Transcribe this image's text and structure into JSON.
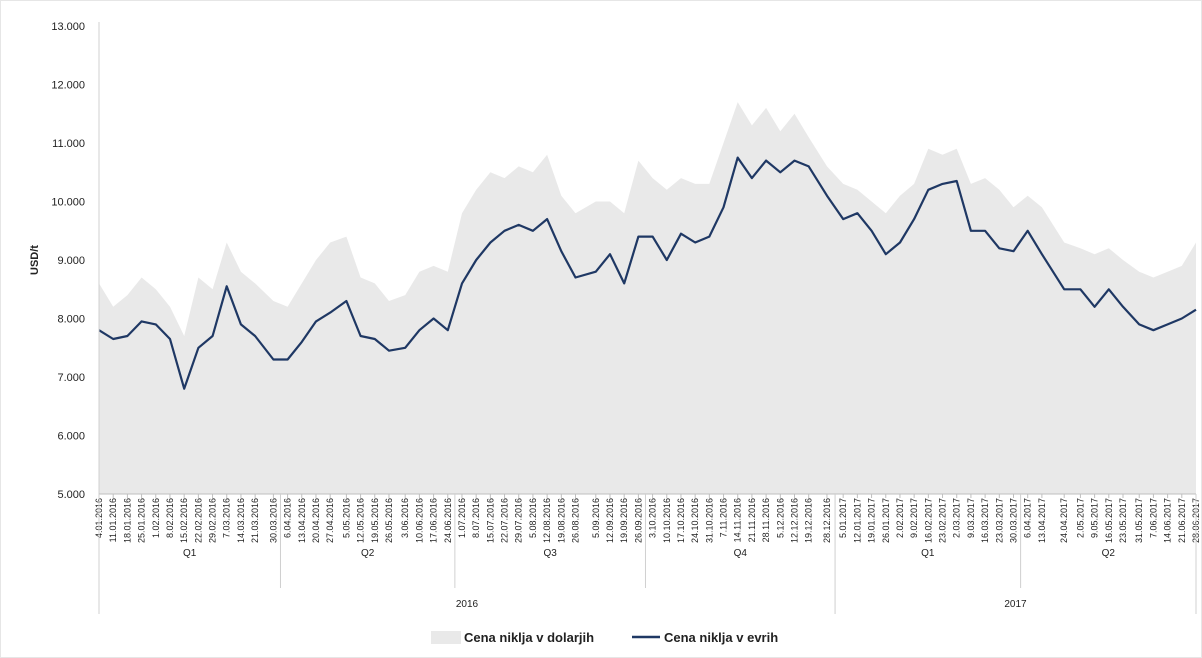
{
  "chart_data": {
    "type": "area",
    "ylabel": "USD/t",
    "ylim": [
      5000,
      13000
    ],
    "yticks": [
      5000,
      6000,
      7000,
      8000,
      9000,
      10000,
      11000,
      12000,
      13000
    ],
    "ytick_labels": [
      "5.000",
      "6.000",
      "7.000",
      "8.000",
      "9.000",
      "10.000",
      "11.000",
      "12.000",
      "13.000"
    ],
    "grid": false,
    "legend_position": "bottom",
    "series": [
      {
        "name": "Cena niklja v dolarjih",
        "kind": "area",
        "color": "#e9e9e9",
        "points": [
          [
            "4.01.2016",
            8600
          ],
          [
            "11.01.2016",
            8200
          ],
          [
            "18.01.2016",
            8400
          ],
          [
            "25.01.2016",
            8700
          ],
          [
            "1.02.2016",
            8500
          ],
          [
            "8.02.2016",
            8200
          ],
          [
            "15.02.2016",
            7700
          ],
          [
            "22.02.2016",
            8700
          ],
          [
            "29.02.2016",
            8500
          ],
          [
            "7.03.2016",
            9300
          ],
          [
            "14.03.2016",
            8800
          ],
          [
            "21.03.2016",
            8600
          ],
          [
            "30.03.2016",
            8300
          ],
          [
            "6.04.2016",
            8200
          ],
          [
            "13.04.2016",
            8600
          ],
          [
            "20.04.2016",
            9000
          ],
          [
            "27.04.2016",
            9300
          ],
          [
            "5.05.2016",
            9400
          ],
          [
            "12.05.2016",
            8700
          ],
          [
            "19.05.2016",
            8600
          ],
          [
            "26.05.2016",
            8300
          ],
          [
            "3.06.2016",
            8400
          ],
          [
            "10.06.2016",
            8800
          ],
          [
            "17.06.2016",
            8900
          ],
          [
            "24.06.2016",
            8800
          ],
          [
            "1.07.2016",
            9800
          ],
          [
            "8.07.2016",
            10200
          ],
          [
            "15.07.2016",
            10500
          ],
          [
            "22.07.2016",
            10400
          ],
          [
            "29.07.2016",
            10600
          ],
          [
            "5.08.2016",
            10500
          ],
          [
            "12.08.2016",
            10800
          ],
          [
            "19.08.2016",
            10100
          ],
          [
            "26.08.2016",
            9800
          ],
          [
            "5.09.2016",
            10000
          ],
          [
            "12.09.2016",
            10000
          ],
          [
            "19.09.2016",
            9800
          ],
          [
            "26.09.2016",
            10700
          ],
          [
            "3.10.2016",
            10400
          ],
          [
            "10.10.2016",
            10200
          ],
          [
            "17.10.2016",
            10400
          ],
          [
            "24.10.2016",
            10300
          ],
          [
            "31.10.2016",
            10300
          ],
          [
            "7.11.2016",
            11000
          ],
          [
            "14.11.2016",
            11700
          ],
          [
            "21.11.2016",
            11300
          ],
          [
            "28.11.2016",
            11600
          ],
          [
            "5.12.2016",
            11200
          ],
          [
            "12.12.2016",
            11500
          ],
          [
            "19.12.2016",
            11100
          ],
          [
            "28.12.2016",
            10600
          ],
          [
            "5.01.2017",
            10300
          ],
          [
            "12.01.2017",
            10200
          ],
          [
            "19.01.2017",
            10000
          ],
          [
            "26.01.2017",
            9800
          ],
          [
            "2.02.2017",
            10100
          ],
          [
            "9.02.2017",
            10300
          ],
          [
            "16.02.2017",
            10900
          ],
          [
            "23.02.2017",
            10800
          ],
          [
            "2.03.2017",
            10900
          ],
          [
            "9.03.2017",
            10300
          ],
          [
            "16.03.2017",
            10400
          ],
          [
            "23.03.2017",
            10200
          ],
          [
            "30.03.2017",
            9900
          ],
          [
            "6.04.2017",
            10100
          ],
          [
            "13.04.2017",
            9900
          ],
          [
            "24.04.2017",
            9300
          ],
          [
            "2.05.2017",
            9200
          ],
          [
            "9.05.2017",
            9100
          ],
          [
            "16.05.2017",
            9200
          ],
          [
            "23.05.2017",
            9000
          ],
          [
            "31.05.2017",
            8800
          ],
          [
            "7.06.2017",
            8700
          ],
          [
            "14.06.2017",
            8800
          ],
          [
            "21.06.2017",
            8900
          ],
          [
            "28.06.2017",
            9300
          ]
        ]
      },
      {
        "name": "Cena niklja v evrih",
        "kind": "line",
        "color": "#1f3864",
        "points": [
          [
            "4.01.2016",
            7800
          ],
          [
            "11.01.2016",
            7650
          ],
          [
            "18.01.2016",
            7700
          ],
          [
            "25.01.2016",
            7950
          ],
          [
            "1.02.2016",
            7900
          ],
          [
            "8.02.2016",
            7650
          ],
          [
            "15.02.2016",
            6800
          ],
          [
            "22.02.2016",
            7500
          ],
          [
            "29.02.2016",
            7700
          ],
          [
            "7.03.2016",
            8550
          ],
          [
            "14.03.2016",
            7900
          ],
          [
            "21.03.2016",
            7700
          ],
          [
            "30.03.2016",
            7300
          ],
          [
            "6.04.2016",
            7300
          ],
          [
            "13.04.2016",
            7600
          ],
          [
            "20.04.2016",
            7950
          ],
          [
            "27.04.2016",
            8100
          ],
          [
            "5.05.2016",
            8300
          ],
          [
            "12.05.2016",
            7700
          ],
          [
            "19.05.2016",
            7650
          ],
          [
            "26.05.2016",
            7450
          ],
          [
            "3.06.2016",
            7500
          ],
          [
            "10.06.2016",
            7800
          ],
          [
            "17.06.2016",
            8000
          ],
          [
            "24.06.2016",
            7800
          ],
          [
            "1.07.2016",
            8600
          ],
          [
            "8.07.2016",
            9000
          ],
          [
            "15.07.2016",
            9300
          ],
          [
            "22.07.2016",
            9500
          ],
          [
            "29.07.2016",
            9600
          ],
          [
            "5.08.2016",
            9500
          ],
          [
            "12.08.2016",
            9700
          ],
          [
            "19.08.2016",
            9150
          ],
          [
            "26.08.2016",
            8700
          ],
          [
            "5.09.2016",
            8800
          ],
          [
            "12.09.2016",
            9100
          ],
          [
            "19.09.2016",
            8600
          ],
          [
            "26.09.2016",
            9400
          ],
          [
            "3.10.2016",
            9400
          ],
          [
            "10.10.2016",
            9000
          ],
          [
            "17.10.2016",
            9450
          ],
          [
            "24.10.2016",
            9300
          ],
          [
            "31.10.2016",
            9400
          ],
          [
            "7.11.2016",
            9900
          ],
          [
            "14.11.2016",
            10750
          ],
          [
            "21.11.2016",
            10400
          ],
          [
            "28.11.2016",
            10700
          ],
          [
            "5.12.2016",
            10500
          ],
          [
            "12.12.2016",
            10700
          ],
          [
            "19.12.2016",
            10600
          ],
          [
            "28.12.2016",
            10100
          ],
          [
            "5.01.2017",
            9700
          ],
          [
            "12.01.2017",
            9800
          ],
          [
            "19.01.2017",
            9500
          ],
          [
            "26.01.2017",
            9100
          ],
          [
            "2.02.2017",
            9300
          ],
          [
            "9.02.2017",
            9700
          ],
          [
            "16.02.2017",
            10200
          ],
          [
            "23.02.2017",
            10300
          ],
          [
            "2.03.2017",
            10350
          ],
          [
            "9.03.2017",
            9500
          ],
          [
            "16.03.2017",
            9500
          ],
          [
            "23.03.2017",
            9200
          ],
          [
            "30.03.2017",
            9150
          ],
          [
            "6.04.2017",
            9500
          ],
          [
            "13.04.2017",
            9100
          ],
          [
            "24.04.2017",
            8500
          ],
          [
            "2.05.2017",
            8500
          ],
          [
            "9.05.2017",
            8200
          ],
          [
            "16.05.2017",
            8500
          ],
          [
            "23.05.2017",
            8200
          ],
          [
            "31.05.2017",
            7900
          ],
          [
            "7.06.2017",
            7800
          ],
          [
            "14.06.2017",
            7900
          ],
          [
            "21.06.2017",
            8000
          ],
          [
            "28.06.2017",
            8150
          ]
        ]
      }
    ],
    "date_labels": [
      "4.01.2016",
      "11.01.2016",
      "18.01.2016",
      "25.01.2016",
      "1.02.2016",
      "8.02.2016",
      "15.02.2016",
      "22.02.2016",
      "29.02.2016",
      "7.03.2016",
      "14.03.2016",
      "21.03.2016",
      "30.03.2016",
      "6.04.2016",
      "13.04.2016",
      "20.04.2016",
      "27.04.2016",
      "5.05.2016",
      "12.05.2016",
      "19.05.2016",
      "26.05.2016",
      "3.06.2016",
      "10.06.2016",
      "17.06.2016",
      "24.06.2016",
      "1.07.2016",
      "8.07.2016",
      "15.07.2016",
      "22.07.2016",
      "29.07.2016",
      "5.08.2016",
      "12.08.2016",
      "19.08.2016",
      "26.08.2016",
      "5.09.2016",
      "12.09.2016",
      "19.09.2016",
      "26.09.2016",
      "3.10.2016",
      "10.10.2016",
      "17.10.2016",
      "24.10.2016",
      "31.10.2016",
      "7.11.2016",
      "14.11.2016",
      "21.11.2016",
      "28.11.2016",
      "5.12.2016",
      "12.12.2016",
      "19.12.2016",
      "28.12.2016",
      "5.01.2017",
      "12.01.2017",
      "19.01.2017",
      "26.01.2017",
      "2.02.2017",
      "9.02.2017",
      "16.02.2017",
      "23.02.2017",
      "2.03.2017",
      "9.03.2017",
      "16.03.2017",
      "23.03.2017",
      "30.03.2017",
      "6.04.2017",
      "13.04.2017",
      "24.04.2017",
      "2.05.2017",
      "9.05.2017",
      "16.05.2017",
      "23.05.2017",
      "31.05.2017",
      "7.06.2017",
      "14.06.2017",
      "21.06.2017",
      "28.06.2017"
    ],
    "quarters": [
      {
        "label": "Q1",
        "start": "4.01.2016",
        "end": "30.03.2016"
      },
      {
        "label": "Q2",
        "start": "6.04.2016",
        "end": "24.06.2016"
      },
      {
        "label": "Q3",
        "start": "1.07.2016",
        "end": "26.09.2016"
      },
      {
        "label": "Q4",
        "start": "3.10.2016",
        "end": "28.12.2016"
      },
      {
        "label": "Q1",
        "start": "5.01.2017",
        "end": "30.03.2017"
      },
      {
        "label": "Q2",
        "start": "6.04.2017",
        "end": "28.06.2017"
      }
    ],
    "years": [
      {
        "label": "2016",
        "start": "4.01.2016",
        "end": "28.12.2016"
      },
      {
        "label": "2017",
        "start": "5.01.2017",
        "end": "28.06.2017"
      }
    ]
  }
}
